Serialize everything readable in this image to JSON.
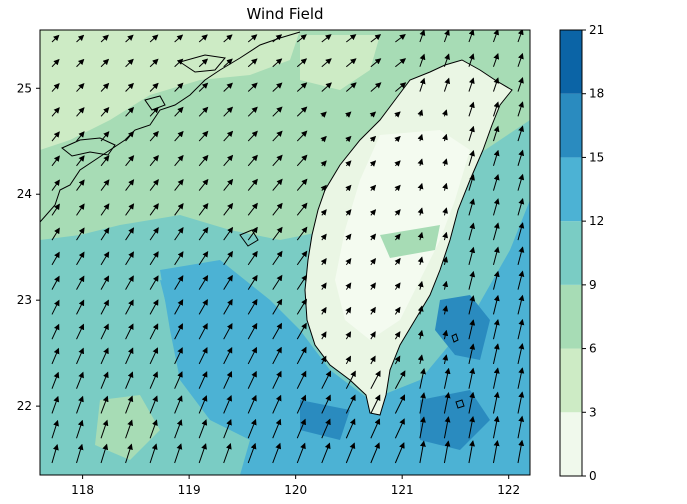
{
  "chart_data": {
    "type": "heatmap",
    "title": "Wind Field",
    "xlabel": "",
    "ylabel": "",
    "xlim": [
      117.6,
      122.2
    ],
    "ylim": [
      21.35,
      25.55
    ],
    "x_ticks": [
      "118",
      "119",
      "120",
      "121",
      "122"
    ],
    "x_tick_values": [
      118,
      119,
      120,
      121,
      122
    ],
    "y_ticks": [
      "22",
      "23",
      "24",
      "25"
    ],
    "y_tick_values": [
      22,
      23,
      24,
      25
    ],
    "colorbar": {
      "levels": [
        0,
        3,
        6,
        9,
        12,
        15,
        18,
        21
      ],
      "tick_labels": [
        "0",
        "3",
        "6",
        "9",
        "12",
        "15",
        "18",
        "21"
      ],
      "colors": [
        "#f0f9ec",
        "#cdebc5",
        "#a7dcb5",
        "#7accc4",
        "#4cb2d4",
        "#2a8bbf",
        "#0b64a6"
      ]
    },
    "grid": false,
    "legend": "none",
    "wind_vectors": "northward-northeastward flow, stronger east of the island"
  }
}
